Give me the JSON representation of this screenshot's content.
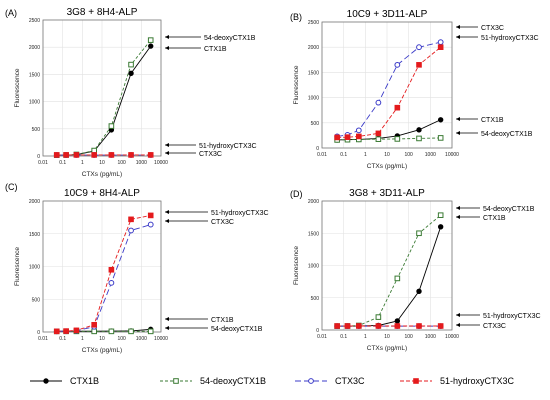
{
  "legend": [
    {
      "label": "CTX1B",
      "color": "#000000",
      "marker": "filled-circle",
      "dash": "solid"
    },
    {
      "label": "54-deoxyCTX1B",
      "color": "#3a7a33",
      "marker": "open-square",
      "dash": "short"
    },
    {
      "label": "CTX3C",
      "color": "#3b3bc8",
      "marker": "open-circle",
      "dash": "long"
    },
    {
      "label": "51-hydroxyCTX3C",
      "color": "#e41a1c",
      "marker": "filled-square",
      "dash": "dash"
    }
  ],
  "chart_data": [
    {
      "panel": "(A)",
      "title": "3G8 + 8H4-ALP",
      "type": "line",
      "xscale": "log",
      "xlabel": "CTXs (pg/mL)",
      "ylabel": "Fluorescence",
      "xlim": [
        0.01,
        10000
      ],
      "ylim": [
        0,
        2500
      ],
      "xticks": [
        0.01,
        0.1,
        1,
        10,
        100,
        1000,
        10000
      ],
      "xticklabels": [
        "0.01",
        "0.1",
        "1",
        "10",
        "100",
        "1000",
        "10000"
      ],
      "yticks": [
        0,
        500,
        1000,
        1500,
        2000,
        2500
      ],
      "x": [
        0.05,
        0.15,
        0.5,
        4,
        30,
        300,
        3000
      ],
      "series": [
        {
          "name": "CTX1B",
          "values": [
            15,
            18,
            25,
            90,
            480,
            1520,
            2020
          ]
        },
        {
          "name": "54-deoxyCTX1B",
          "values": [
            15,
            18,
            28,
            100,
            550,
            1680,
            2130
          ]
        },
        {
          "name": "CTX3C",
          "values": [
            18,
            18,
            18,
            18,
            18,
            18,
            18
          ]
        },
        {
          "name": "51-hydroxyCTX3C",
          "values": [
            20,
            20,
            20,
            20,
            20,
            20,
            20
          ]
        }
      ],
      "annotations": [
        "54-deoxyCTX1B",
        "CTX1B",
        "51-hydroxyCTX3C",
        "CTX3C"
      ]
    },
    {
      "panel": "(B)",
      "title": "10C9 + 3D11-ALP",
      "type": "line",
      "xscale": "log",
      "xlabel": "CTXs (pg/mL)",
      "ylabel": "Fluorescence",
      "xlim": [
        0.01,
        10000
      ],
      "ylim": [
        0,
        2500
      ],
      "xticks": [
        0.01,
        0.1,
        1,
        10,
        100,
        1000,
        10000
      ],
      "xticklabels": [
        "0.01",
        "0.1",
        "1",
        "10",
        "100",
        "1000",
        "10000"
      ],
      "yticks": [
        0,
        500,
        1000,
        1500,
        2000,
        2500
      ],
      "x": [
        0.05,
        0.15,
        0.5,
        4,
        30,
        300,
        3000
      ],
      "series": [
        {
          "name": "CTX1B",
          "values": [
            160,
            165,
            170,
            190,
            240,
            360,
            560
          ]
        },
        {
          "name": "54-deoxyCTX1B",
          "values": [
            160,
            165,
            170,
            175,
            180,
            190,
            200
          ]
        },
        {
          "name": "CTX3C",
          "values": [
            230,
            260,
            350,
            900,
            1650,
            2000,
            2100
          ]
        },
        {
          "name": "51-hydroxyCTX3C",
          "values": [
            210,
            215,
            230,
            290,
            800,
            1650,
            2000
          ]
        }
      ],
      "annotations": [
        "CTX3C",
        "51-hydroxyCTX3C",
        "CTX1B",
        "54-deoxyCTX1B"
      ]
    },
    {
      "panel": "(C)",
      "title": "10C9 + 8H4-ALP",
      "type": "line",
      "xscale": "log",
      "xlabel": "CTXs (pg/mL)",
      "ylabel": "Fluorescence",
      "xlim": [
        0.01,
        10000
      ],
      "ylim": [
        0,
        2000
      ],
      "xticks": [
        0.01,
        0.1,
        1,
        10,
        100,
        1000,
        10000
      ],
      "xticklabels": [
        "0.01",
        "0.1",
        "1",
        "10",
        "100",
        "1000",
        "10000"
      ],
      "yticks": [
        0,
        500,
        1000,
        1500,
        2000
      ],
      "x": [
        0.05,
        0.15,
        0.5,
        4,
        30,
        300,
        3000
      ],
      "series": [
        {
          "name": "CTX1B",
          "values": [
            12,
            12,
            12,
            12,
            14,
            16,
            40
          ]
        },
        {
          "name": "54-deoxyCTX1B",
          "values": [
            10,
            10,
            10,
            10,
            10,
            10,
            10
          ]
        },
        {
          "name": "CTX3C",
          "values": [
            10,
            12,
            20,
            80,
            750,
            1550,
            1640
          ]
        },
        {
          "name": "51-hydroxyCTX3C",
          "values": [
            10,
            14,
            25,
            110,
            950,
            1720,
            1780
          ]
        }
      ],
      "annotations": [
        "51-hydroxyCTX3C",
        "CTX3C",
        "CTX1B",
        "54-deoxyCTX1B"
      ]
    },
    {
      "panel": "(D)",
      "title": "3G8 + 3D11-ALP",
      "type": "line",
      "xscale": "log",
      "xlabel": "CTXs (pg/mL)",
      "ylabel": "Fluorescence",
      "xlim": [
        0.01,
        10000
      ],
      "ylim": [
        0,
        2000
      ],
      "xticks": [
        0.01,
        0.1,
        1,
        10,
        100,
        1000,
        10000
      ],
      "xticklabels": [
        "0.01",
        "0.1",
        "1",
        "10",
        "100",
        "1000",
        "10000"
      ],
      "yticks": [
        0,
        500,
        1000,
        1500,
        2000
      ],
      "x": [
        0.05,
        0.15,
        0.5,
        4,
        30,
        300,
        3000
      ],
      "series": [
        {
          "name": "CTX1B",
          "values": [
            60,
            60,
            62,
            70,
            140,
            600,
            1600
          ]
        },
        {
          "name": "54-deoxyCTX1B",
          "values": [
            60,
            62,
            70,
            200,
            800,
            1500,
            1780
          ]
        },
        {
          "name": "CTX3C",
          "values": [
            60,
            60,
            60,
            60,
            60,
            60,
            60
          ]
        },
        {
          "name": "51-hydroxyCTX3C",
          "values": [
            62,
            62,
            62,
            62,
            62,
            62,
            62
          ]
        }
      ],
      "annotations": [
        "54-deoxyCTX1B",
        "CTX1B",
        "51-hydroxyCTX3C",
        "CTX3C"
      ]
    }
  ]
}
